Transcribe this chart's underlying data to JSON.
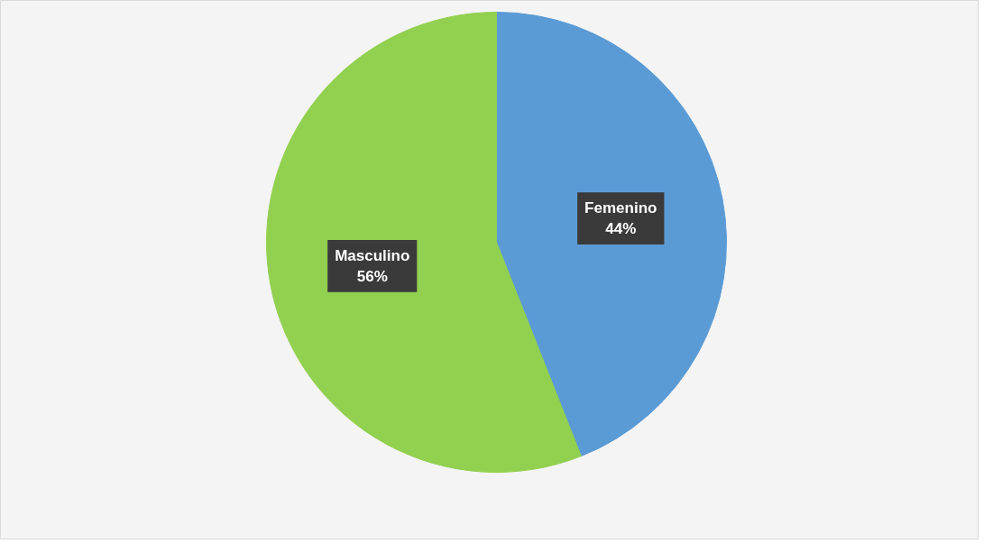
{
  "chart_data": {
    "type": "pie",
    "categories": [
      "Femenino",
      "Masculino"
    ],
    "values": [
      44,
      56
    ],
    "colors": [
      "#5b9bd5",
      "#92d050"
    ],
    "value_labels": [
      "44%",
      "56%"
    ]
  }
}
